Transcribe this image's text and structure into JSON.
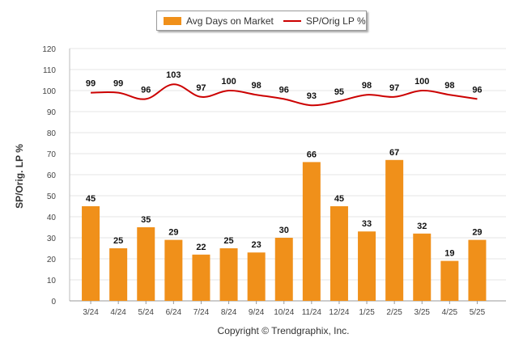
{
  "legend": {
    "bar_label": "Avg Days on Market",
    "line_label": "SP/Orig LP %"
  },
  "y_axis_title": "SP/Orig. LP %",
  "footer": "Copyright © Trendgraphix, Inc.",
  "colors": {
    "bar": "#f0901a",
    "line": "#cc0000",
    "grid": "#e6e6e6"
  },
  "chart_data": {
    "type": "bar",
    "categories": [
      "3/24",
      "4/24",
      "5/24",
      "6/24",
      "7/24",
      "8/24",
      "9/24",
      "10/24",
      "11/24",
      "12/24",
      "1/25",
      "2/25",
      "3/25",
      "4/25",
      "5/25"
    ],
    "series": [
      {
        "name": "Avg Days on Market",
        "type": "bar",
        "values": [
          45,
          25,
          35,
          29,
          22,
          25,
          23,
          30,
          66,
          45,
          33,
          67,
          32,
          19,
          29
        ]
      },
      {
        "name": "SP/Orig LP %",
        "type": "line",
        "values": [
          99,
          99,
          96,
          103,
          97,
          100,
          98,
          96,
          93,
          95,
          98,
          97,
          100,
          98,
          96
        ]
      }
    ],
    "ylim": [
      0,
      120
    ],
    "yticks": [
      0,
      10,
      20,
      30,
      40,
      50,
      60,
      70,
      80,
      90,
      100,
      110,
      120
    ],
    "ylabel": "SP/Orig. LP %",
    "grid": true,
    "legend_position": "top"
  }
}
